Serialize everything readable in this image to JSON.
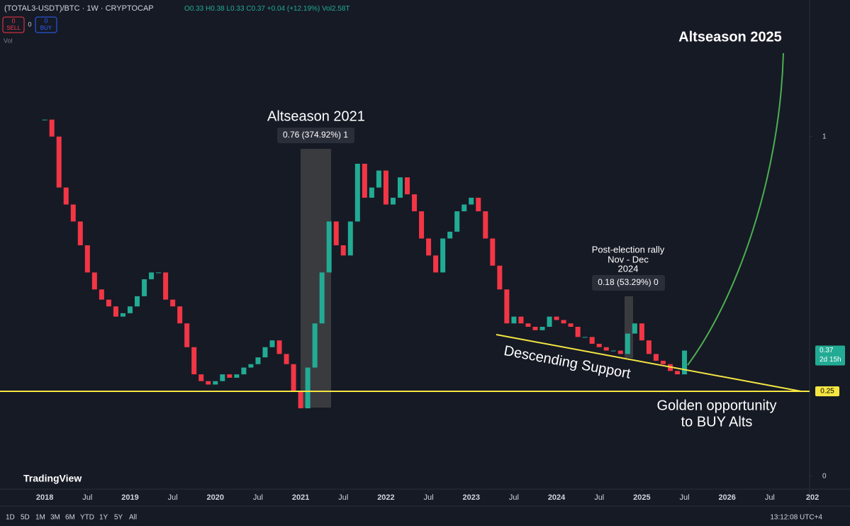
{
  "header": {
    "symbol": "(TOTAL3-USDT)/BTC · 1W · CRYPTOCAP",
    "ohlc": [
      "O0.33",
      "H0.38",
      "L0.33",
      "C0.37"
    ],
    "change": "+0.04 (+12.19%)",
    "volume": "Vol2.58T",
    "sell": {
      "count": "0",
      "label": "SELL"
    },
    "spread": "0",
    "buy": {
      "count": "0",
      "label": "BUY"
    },
    "vol_label": "Vol"
  },
  "chart_data": {
    "type": "candlestick",
    "values": [
      1.05,
      1.0,
      0.85,
      0.8,
      0.75,
      0.68,
      0.6,
      0.55,
      0.52,
      0.5,
      0.47,
      0.48,
      0.5,
      0.53,
      0.58,
      0.6,
      0.6,
      0.52,
      0.5,
      0.45,
      0.38,
      0.3,
      0.28,
      0.27,
      0.28,
      0.3,
      0.29,
      0.3,
      0.32,
      0.33,
      0.35,
      0.38,
      0.4,
      0.36,
      0.33,
      0.25,
      0.2,
      0.32,
      0.45,
      0.6,
      0.75,
      0.68,
      0.65,
      0.75,
      0.92,
      0.82,
      0.85,
      0.9,
      0.8,
      0.82,
      0.88,
      0.83,
      0.78,
      0.7,
      0.65,
      0.6,
      0.7,
      0.72,
      0.78,
      0.8,
      0.82,
      0.78,
      0.7,
      0.62,
      0.55,
      0.45,
      0.47,
      0.45,
      0.44,
      0.43,
      0.44,
      0.47,
      0.46,
      0.45,
      0.44,
      0.41,
      0.41,
      0.39,
      0.38,
      0.37,
      0.37,
      0.36,
      0.42,
      0.45,
      0.4,
      0.36,
      0.34,
      0.33,
      0.31,
      0.3,
      0.37
    ],
    "up_color": "#22ab94",
    "down_color": "#f23645",
    "xlim": [
      -6.3,
      107.6
    ],
    "ylim": [
      -0.04,
      1.4
    ],
    "yticks": [
      0,
      1
    ],
    "xticks": [
      {
        "value": 0,
        "label": "2018"
      },
      {
        "value": 6,
        "label": "Jul"
      },
      {
        "value": 12,
        "label": "2019"
      },
      {
        "value": 18,
        "label": "Jul"
      },
      {
        "value": 24,
        "label": "2020"
      },
      {
        "value": 30,
        "label": "Jul"
      },
      {
        "value": 36,
        "label": "2021"
      },
      {
        "value": 42,
        "label": "Jul"
      },
      {
        "value": 48,
        "label": "2022"
      },
      {
        "value": 54,
        "label": "Jul"
      },
      {
        "value": 60,
        "label": "2023"
      },
      {
        "value": 66,
        "label": "Jul"
      },
      {
        "value": 72,
        "label": "2024"
      },
      {
        "value": 78,
        "label": "Jul"
      },
      {
        "value": 84,
        "label": "2025"
      },
      {
        "value": 90,
        "label": "Jul"
      },
      {
        "value": 96,
        "label": "2026"
      },
      {
        "value": 102,
        "label": "Jul"
      },
      {
        "value": 108,
        "label": "202"
      }
    ],
    "last_price": 0.37,
    "countdown": "2d 15h",
    "level": 0.25,
    "annotations": [
      "Altseason 2021",
      "0.76 (374.92%) 1",
      "Post-election rally",
      "Nov - Dec",
      "2024",
      "0.18 (53.29%) 0",
      "Descending Support",
      "Golden opportunity",
      "to BUY Alts",
      "Altseason 2025"
    ]
  },
  "logo": "TradingView",
  "toolbar": {
    "ranges": [
      "1D",
      "5D",
      "1M",
      "3M",
      "6M",
      "YTD",
      "1Y",
      "5Y",
      "All"
    ],
    "clock": "13:12:08 UTC+4"
  }
}
